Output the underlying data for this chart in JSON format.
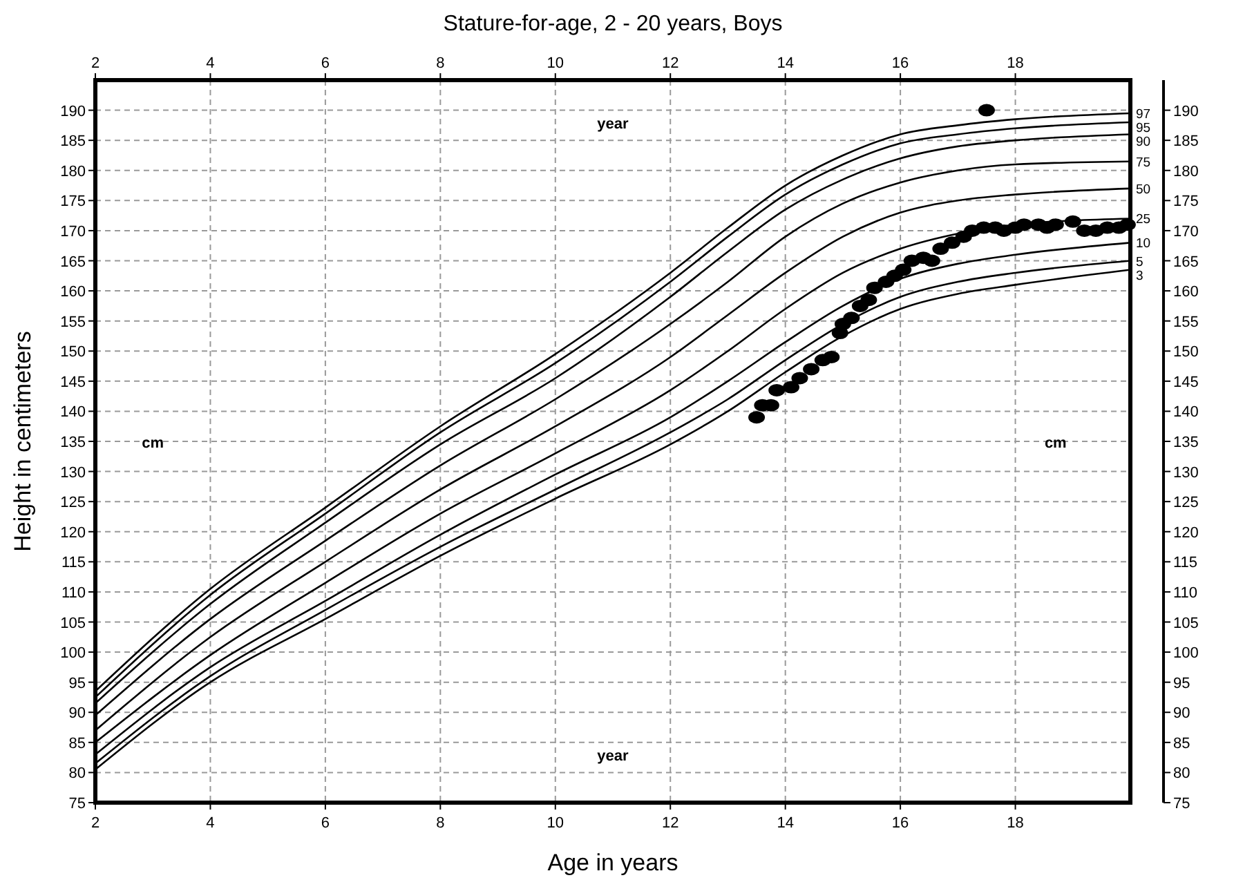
{
  "chart_data": {
    "type": "line",
    "title": "Stature-for-age, 2 - 20 years, Boys",
    "xlabel": "Age in years",
    "ylabel": "Height in centimeters",
    "xlim": [
      2,
      20
    ],
    "xticks": [
      2,
      4,
      6,
      8,
      10,
      12,
      14,
      16,
      18
    ],
    "x2lim": [
      2,
      20
    ],
    "x2ticks": [
      2,
      4,
      6,
      8,
      10,
      12,
      14,
      16,
      18
    ],
    "ylim": [
      75,
      195
    ],
    "yticks": [
      75,
      80,
      85,
      90,
      95,
      100,
      105,
      110,
      115,
      120,
      125,
      130,
      135,
      140,
      145,
      150,
      155,
      160,
      165,
      170,
      175,
      180,
      185,
      190
    ],
    "y2lim": [
      75,
      195
    ],
    "y2ticks": [
      75,
      80,
      85,
      90,
      95,
      100,
      105,
      110,
      115,
      120,
      125,
      130,
      135,
      140,
      145,
      150,
      155,
      160,
      165,
      170,
      175,
      180,
      185,
      190
    ],
    "grid": true,
    "annotations": [
      "year",
      "year",
      "cm",
      "cm"
    ],
    "series": [
      {
        "name": "3",
        "color": "#000000",
        "x": [
          2,
          4,
          6,
          8,
          10,
          12,
          13,
          14,
          15,
          16,
          17,
          18,
          20
        ],
        "values": [
          80.5,
          95,
          105.5,
          116,
          125.5,
          134.5,
          140,
          146.5,
          152.5,
          157,
          159.5,
          161,
          163.5
        ]
      },
      {
        "name": "5",
        "color": "#000000",
        "x": [
          2,
          4,
          6,
          8,
          10,
          12,
          13,
          14,
          15,
          16,
          17,
          18,
          20
        ],
        "values": [
          81.5,
          96,
          107,
          117.5,
          127,
          136.5,
          142,
          148.5,
          154.5,
          159,
          161.5,
          163,
          165
        ]
      },
      {
        "name": "10",
        "color": "#000000",
        "x": [
          2,
          4,
          6,
          8,
          10,
          12,
          13,
          14,
          15,
          16,
          17,
          18,
          20
        ],
        "values": [
          83,
          97.5,
          108.5,
          119.5,
          129.5,
          139,
          145,
          151.5,
          157.5,
          162,
          164.5,
          166,
          168
        ]
      },
      {
        "name": "25",
        "color": "#000000",
        "x": [
          2,
          4,
          6,
          8,
          10,
          12,
          13,
          14,
          15,
          16,
          17,
          18,
          20
        ],
        "values": [
          85,
          99.5,
          111.5,
          123,
          133,
          143.5,
          150,
          157,
          163,
          167,
          169.5,
          171,
          172
        ]
      },
      {
        "name": "50",
        "color": "#000000",
        "x": [
          2,
          4,
          6,
          8,
          10,
          12,
          13,
          14,
          15,
          16,
          17,
          18,
          20
        ],
        "values": [
          87,
          102.5,
          115,
          127,
          137.5,
          149,
          156,
          163,
          169,
          173,
          175,
          176,
          177
        ]
      },
      {
        "name": "75",
        "color": "#000000",
        "x": [
          2,
          4,
          6,
          8,
          10,
          12,
          13,
          14,
          15,
          16,
          17,
          18,
          20
        ],
        "values": [
          89.5,
          105.5,
          118.5,
          131,
          142,
          154.5,
          161.5,
          169,
          174.5,
          178,
          180,
          181,
          181.5
        ]
      },
      {
        "name": "90",
        "color": "#000000",
        "x": [
          2,
          4,
          6,
          8,
          10,
          12,
          13,
          14,
          15,
          16,
          17,
          18,
          20
        ],
        "values": [
          91.5,
          108,
          121.5,
          134.5,
          145.5,
          159,
          166.5,
          173.5,
          178.5,
          182,
          184,
          185,
          186
        ]
      },
      {
        "name": "95",
        "color": "#000000",
        "x": [
          2,
          4,
          6,
          8,
          10,
          12,
          13,
          14,
          15,
          16,
          17,
          18,
          20
        ],
        "values": [
          92.5,
          109.5,
          123,
          136.5,
          148,
          161.5,
          169,
          176,
          181,
          184.5,
          186,
          187,
          188
        ]
      },
      {
        "name": "97",
        "color": "#000000",
        "x": [
          2,
          4,
          6,
          8,
          10,
          12,
          13,
          14,
          15,
          16,
          17,
          18,
          20
        ],
        "values": [
          93.5,
          110.5,
          124,
          137.5,
          149.5,
          163,
          170.5,
          177.5,
          182.5,
          186,
          187.5,
          188.5,
          189.5
        ]
      },
      {
        "type": "scatter",
        "marker": "circle",
        "color": "#000000",
        "x": [
          13.5,
          13.6,
          13.75,
          13.85,
          14.1,
          14.25,
          14.45,
          14.65,
          14.8,
          14.95,
          15,
          15.15,
          15.3,
          15.45,
          15.55,
          15.75,
          15.9,
          16.05,
          16.2,
          16.4,
          16.55,
          16.7,
          16.9,
          17.1,
          17.25,
          17.45,
          17.5,
          17.65,
          17.8,
          18,
          18.15,
          18.4,
          18.55,
          18.7,
          19,
          19.2,
          19.4,
          19.6,
          19.8,
          19.95
        ],
        "values": [
          139,
          141,
          141,
          143.5,
          144,
          145.5,
          147,
          148.5,
          149,
          153,
          154.5,
          155.5,
          157.5,
          158.5,
          160.5,
          161.5,
          162.5,
          163.5,
          165,
          165.5,
          165,
          167,
          168,
          169,
          170,
          170.5,
          190,
          170.5,
          170,
          170.5,
          171,
          171,
          170.5,
          171,
          171.5,
          170,
          170,
          170.5,
          170.5,
          171
        ]
      }
    ]
  }
}
